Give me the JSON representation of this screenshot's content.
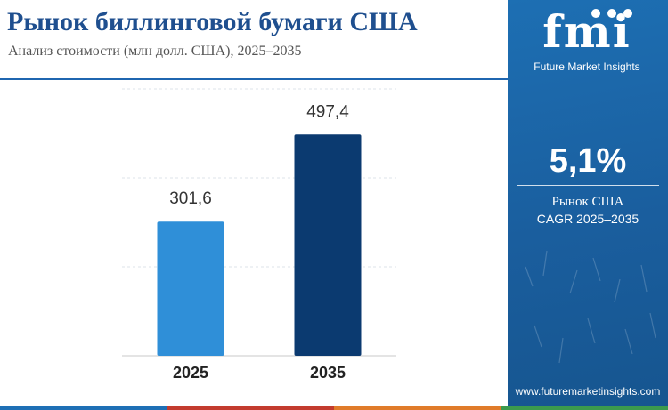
{
  "header": {
    "title": "Рынок биллинговой бумаги США",
    "subtitle": "Анализ стоимости (млн долл. США), 2025–2035"
  },
  "chart_data": {
    "type": "bar",
    "title": "Рынок биллинговой бумаги США",
    "subtitle": "Анализ стоимости (млн долл. США), 2025–2035",
    "categories": [
      "2025",
      "2035"
    ],
    "values": [
      301.6,
      497.4
    ],
    "value_labels": [
      "301,6",
      "497,4"
    ],
    "bar_colors": [
      "#2f8fd8",
      "#0b3a70"
    ],
    "ylim": [
      0,
      600
    ],
    "grid": true,
    "xlabel": "",
    "ylabel": ""
  },
  "sidebar": {
    "logo_word": "fmi",
    "logo_tagline": "Future Market Insights",
    "kpi_value": "5,1%",
    "kpi_line1": "Рынок США",
    "kpi_line2": "CAGR 2025–2035",
    "website": "www.futuremarketinsights.com",
    "background_color": "#1a66ad"
  },
  "footer": {
    "stripe_colors": [
      "#1e6fb5",
      "#c33b2e",
      "#e07b2a",
      "#3b9a4d"
    ]
  }
}
